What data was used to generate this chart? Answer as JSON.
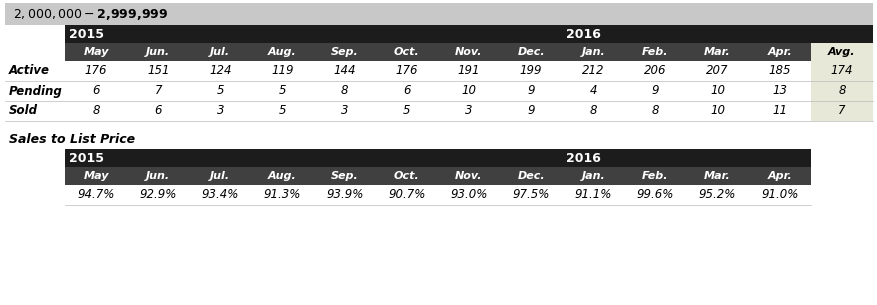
{
  "title": "$2,000,000 - $2,999,999",
  "title_bg": "#c8c8c8",
  "header_bg": "#1c1c1c",
  "subheader_bg": "#404040",
  "avg_col_bg": "#e8e8d8",
  "row_labels": [
    "Active",
    "Pending",
    "Sold"
  ],
  "col_headers": [
    "May",
    "Jun.",
    "Jul.",
    "Aug.",
    "Sep.",
    "Oct.",
    "Nov.",
    "Dec.",
    "Jan.",
    "Feb.",
    "Mar.",
    "Apr.",
    "Avg."
  ],
  "table1_data": [
    [
      176,
      151,
      124,
      119,
      144,
      176,
      191,
      199,
      212,
      206,
      207,
      185,
      174
    ],
    [
      6,
      7,
      5,
      5,
      8,
      6,
      10,
      9,
      4,
      9,
      10,
      13,
      8
    ],
    [
      8,
      6,
      3,
      5,
      3,
      5,
      3,
      9,
      8,
      8,
      10,
      11,
      7
    ]
  ],
  "sales_label": "Sales to List Price",
  "table2_col_headers": [
    "May",
    "Jun.",
    "Jul.",
    "Aug.",
    "Sep.",
    "Oct.",
    "Nov.",
    "Dec.",
    "Jan.",
    "Feb.",
    "Mar.",
    "Apr."
  ],
  "table2_data": [
    "94.7%",
    "92.9%",
    "93.4%",
    "91.3%",
    "93.9%",
    "90.7%",
    "93.0%",
    "97.5%",
    "91.1%",
    "99.6%",
    "95.2%",
    "91.0%"
  ]
}
